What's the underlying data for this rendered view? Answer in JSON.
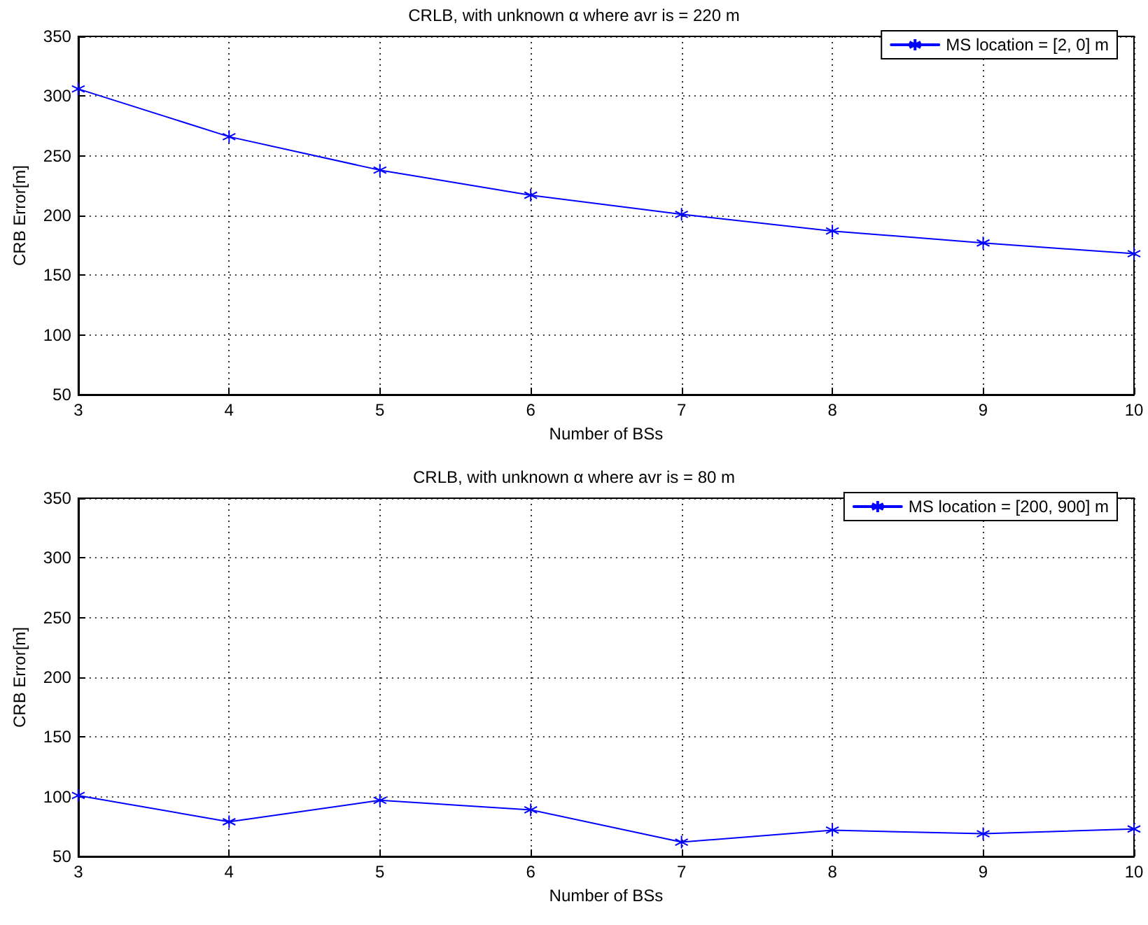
{
  "chart_data": [
    {
      "type": "line",
      "title": "CRLB, with unknown α where avr is = 220 m",
      "xlabel": "Number of BSs",
      "ylabel": "CRB Error[m]",
      "x": [
        3,
        4,
        5,
        6,
        7,
        8,
        9,
        10
      ],
      "series": [
        {
          "name": "MS location = [2, 0] m",
          "color": "#0000ff",
          "values": [
            306,
            266,
            238,
            217,
            201,
            187,
            177,
            168
          ]
        }
      ],
      "xlim": [
        3,
        10
      ],
      "xticks": [
        3,
        4,
        5,
        6,
        7,
        8,
        9,
        10
      ],
      "ylim": [
        50,
        350
      ],
      "yticks": [
        50,
        100,
        150,
        200,
        250,
        300,
        350
      ],
      "grid": true,
      "legend": "top right",
      "marker": "cross",
      "line_style": "solid"
    },
    {
      "type": "line",
      "title": "CRLB, with unknown α where avr is = 80 m",
      "xlabel": "Number of BSs",
      "ylabel": "CRB Error[m]",
      "x": [
        3,
        4,
        5,
        6,
        7,
        8,
        9,
        10
      ],
      "series": [
        {
          "name": "MS location = [200, 900] m",
          "color": "#0000ff",
          "values": [
            101,
            79,
            97,
            89,
            62,
            72,
            69,
            73
          ]
        }
      ],
      "xlim": [
        3,
        10
      ],
      "xticks": [
        3,
        4,
        5,
        6,
        7,
        8,
        9,
        10
      ],
      "ylim": [
        50,
        350
      ],
      "yticks": [
        50,
        100,
        150,
        200,
        250,
        300,
        350
      ],
      "grid": true,
      "legend": "top right",
      "marker": "cross",
      "line_style": "solid"
    }
  ]
}
